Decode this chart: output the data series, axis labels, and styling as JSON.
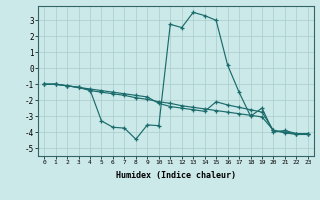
{
  "xlabel": "Humidex (Indice chaleur)",
  "bg_color": "#cce9e9",
  "grid_color": "#b8d8d8",
  "line_color": "#1a6b6b",
  "xlim": [
    -0.5,
    23.5
  ],
  "ylim": [
    -5.5,
    3.9
  ],
  "xticks": [
    0,
    1,
    2,
    3,
    4,
    5,
    6,
    7,
    8,
    9,
    10,
    11,
    12,
    13,
    14,
    15,
    16,
    17,
    18,
    19,
    20,
    21,
    22,
    23
  ],
  "yticks": [
    -5,
    -4,
    -3,
    -2,
    -1,
    0,
    1,
    2,
    3
  ],
  "series": [
    {
      "x": [
        0,
        1,
        2,
        3,
        4,
        5,
        6,
        7,
        8,
        9,
        10,
        11,
        12,
        13,
        14,
        15,
        16,
        17,
        18,
        19,
        20,
        21,
        22,
        23
      ],
      "y": [
        -1,
        -1,
        -1.1,
        -1.2,
        -1.35,
        -3.3,
        -3.7,
        -3.75,
        -4.45,
        -3.55,
        -3.6,
        2.75,
        2.55,
        3.5,
        3.3,
        3.0,
        0.2,
        -1.5,
        -3.0,
        -2.5,
        -4.0,
        -3.9,
        -4.1,
        -4.1
      ]
    },
    {
      "x": [
        0,
        1,
        2,
        3,
        4,
        5,
        6,
        7,
        8,
        9,
        10,
        11,
        12,
        13,
        14,
        15,
        16,
        17,
        18,
        19,
        20,
        21,
        22,
        23
      ],
      "y": [
        -1,
        -1,
        -1.1,
        -1.2,
        -1.4,
        -1.5,
        -1.6,
        -1.7,
        -1.85,
        -1.95,
        -2.1,
        -2.2,
        -2.35,
        -2.45,
        -2.55,
        -2.65,
        -2.75,
        -2.85,
        -2.95,
        -3.05,
        -3.9,
        -4.05,
        -4.15,
        -4.15
      ]
    },
    {
      "x": [
        0,
        1,
        2,
        3,
        4,
        5,
        6,
        7,
        8,
        9,
        10,
        11,
        12,
        13,
        14,
        15,
        16,
        17,
        18,
        19,
        20,
        21,
        22,
        23
      ],
      "y": [
        -1,
        -1,
        -1.1,
        -1.2,
        -1.3,
        -1.4,
        -1.5,
        -1.6,
        -1.7,
        -1.8,
        -2.2,
        -2.4,
        -2.5,
        -2.6,
        -2.7,
        -2.1,
        -2.3,
        -2.45,
        -2.6,
        -2.75,
        -3.9,
        -4.0,
        -4.1,
        -4.1
      ]
    }
  ]
}
